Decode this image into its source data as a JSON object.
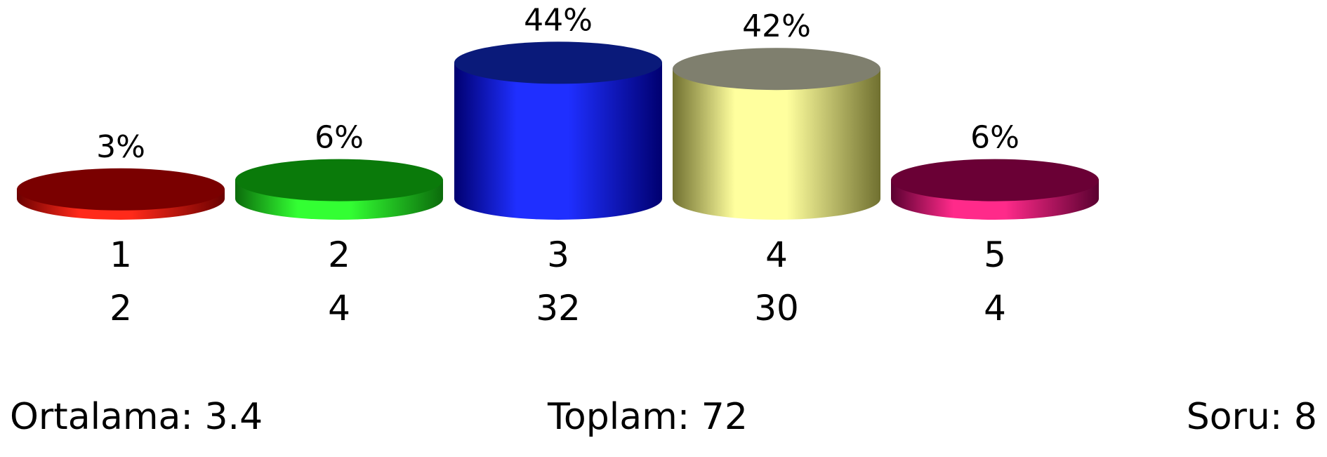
{
  "chart_data": {
    "type": "bar",
    "style": "3d-cylinder",
    "categories": [
      "1",
      "2",
      "3",
      "4",
      "5"
    ],
    "percent_labels": [
      "3%",
      "6%",
      "44%",
      "42%",
      "6%"
    ],
    "percentages": [
      3,
      6,
      44,
      42,
      6
    ],
    "count_labels": [
      "2",
      "4",
      "32",
      "30",
      "4"
    ],
    "counts": [
      2,
      4,
      32,
      30,
      4
    ],
    "colors": [
      {
        "side_dark": "#6b0000",
        "side_light": "#ff2a1a",
        "top": "#7a0000"
      },
      {
        "side_dark": "#0b6b0b",
        "side_light": "#33ff33",
        "top": "#0a7a0a"
      },
      {
        "side_dark": "#000070",
        "side_light": "#1f2fff",
        "top": "#0a1a7a"
      },
      {
        "side_dark": "#707030",
        "side_light": "#ffff9e",
        "top": "#7f7f6e"
      },
      {
        "side_dark": "#5a0030",
        "side_light": "#ff2a8a",
        "top": "#6a0035"
      }
    ],
    "grid": false,
    "legend": "none"
  },
  "footer": {
    "average_label": "Ortalama:",
    "average_value": "3.4",
    "total_label": "Toplam:",
    "total_value": "72",
    "questions_label": "Soru:",
    "questions_value": "8"
  }
}
